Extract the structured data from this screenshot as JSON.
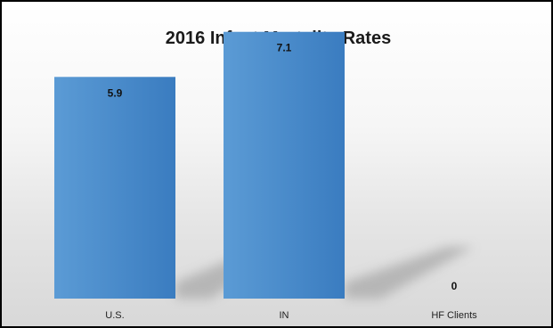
{
  "chart_data": {
    "type": "bar",
    "title": "2016 Infant Mortality Rates",
    "categories": [
      "U.S.",
      "IN",
      "HF Clients"
    ],
    "values": [
      5.9,
      7.1,
      0
    ],
    "data_labels": [
      "5.9",
      "7.1",
      "0"
    ],
    "xlabel": "",
    "ylabel": "",
    "ylim": [
      0,
      7.9
    ],
    "grid": false,
    "legend": "none",
    "bar_color": "#5b9bd5",
    "bar_color_dark": "#3a7cc0",
    "shadow_color": "#a9a9a9"
  }
}
